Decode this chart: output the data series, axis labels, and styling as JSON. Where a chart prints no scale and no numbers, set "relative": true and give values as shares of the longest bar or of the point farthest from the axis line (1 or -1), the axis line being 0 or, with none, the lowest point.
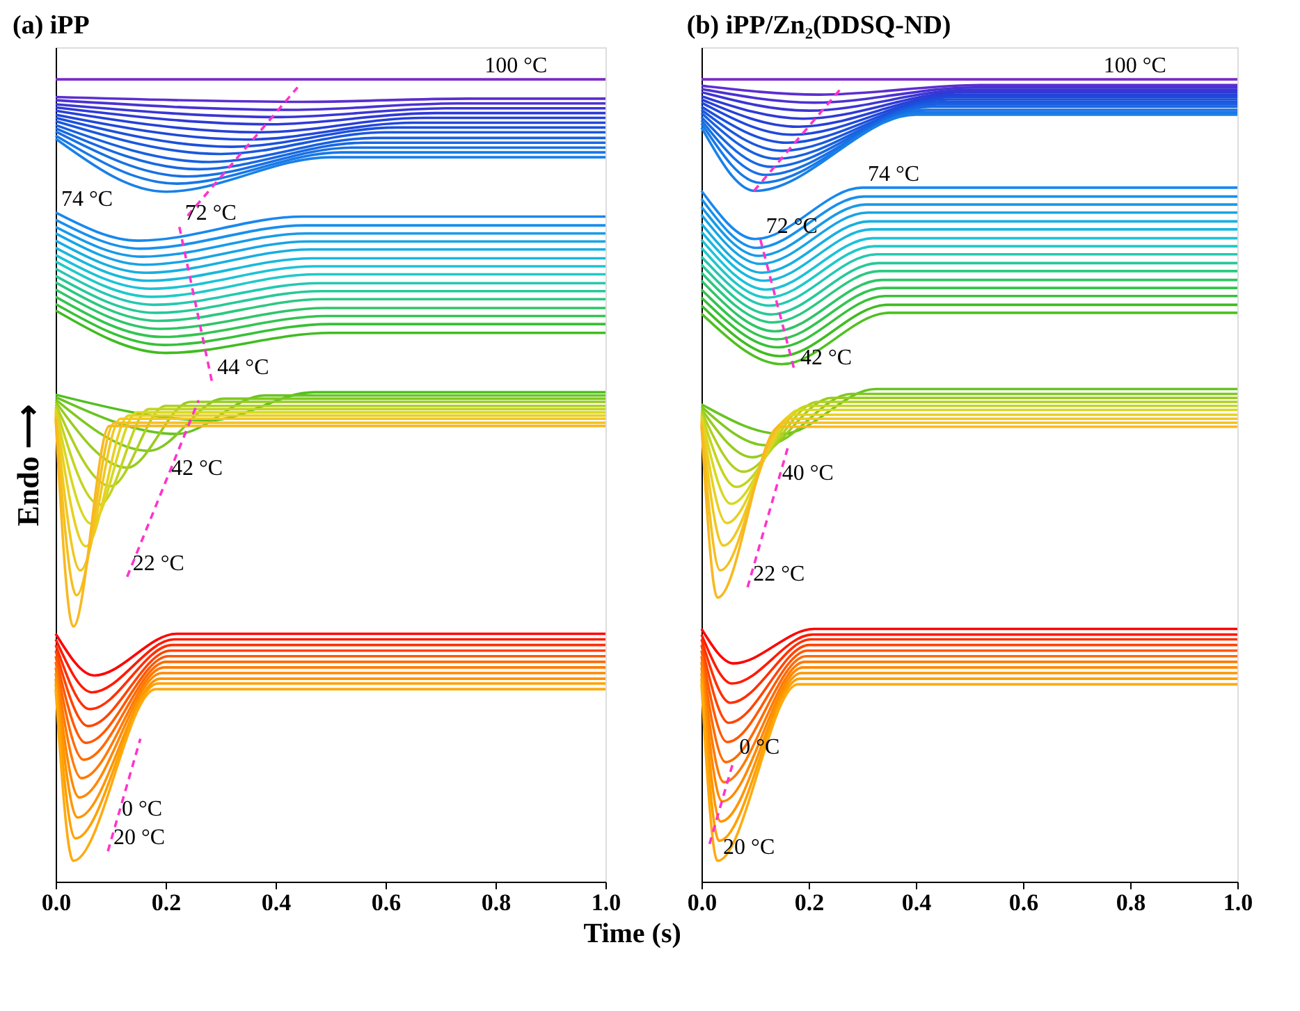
{
  "chart_data": [
    {
      "type": "line",
      "title": "(a) iPP",
      "ylabel": "Endo ⟶",
      "xlabel": "Time (s)",
      "relative": true,
      "tick_labels": "x",
      "xlim": [
        0,
        1
      ],
      "xticks": [
        {
          "value": 0,
          "label": "0.0"
        },
        {
          "value": 0.2,
          "label": "0.2"
        },
        {
          "value": 0.4,
          "label": "0.4"
        },
        {
          "value": 0.6,
          "label": "0.6"
        },
        {
          "value": 0.8,
          "label": "0.8"
        },
        {
          "value": 1,
          "label": "1.0"
        }
      ],
      "annotations": [
        {
          "text": "100 °C",
          "x": 0.77,
          "y": 1.0
        },
        {
          "text": "74 °C",
          "x": 0,
          "y": 0.834
        },
        {
          "text": "72 °C",
          "x": 0.225,
          "y": 0.816
        },
        {
          "text": "44 °C",
          "x": 0.284,
          "y": 0.624
        },
        {
          "text": "42 °C",
          "x": 0.2,
          "y": 0.498
        },
        {
          "text": "22 °C",
          "x": 0.13,
          "y": 0.38
        },
        {
          "text": "0 °C",
          "x": 0.11,
          "y": 0.074
        },
        {
          "text": "20 °C",
          "x": 0.095,
          "y": 0.038
        }
      ],
      "series": [
        {
          "color": "#7a2cc8",
          "x": [
            0,
            1
          ],
          "values": [
            1.0,
            1.0
          ]
        },
        {
          "color": "#5b2fd0",
          "x": [
            0,
            0.45,
            0.75,
            1
          ],
          "values": [
            0.978,
            0.972,
            0.976,
            0.976
          ]
        },
        {
          "color": "#4a32d2",
          "x": [
            0,
            0.43,
            0.73,
            1
          ],
          "values": [
            0.974,
            0.962,
            0.97,
            0.97
          ]
        },
        {
          "color": "#3a36d4",
          "x": [
            0,
            0.41,
            0.71,
            1
          ],
          "values": [
            0.969,
            0.953,
            0.964,
            0.964
          ]
        },
        {
          "color": "#2e3ad6",
          "x": [
            0,
            0.39,
            0.69,
            1
          ],
          "values": [
            0.965,
            0.944,
            0.958,
            0.958
          ]
        },
        {
          "color": "#2640d8",
          "x": [
            0,
            0.37,
            0.67,
            1
          ],
          "values": [
            0.961,
            0.934,
            0.952,
            0.952
          ]
        },
        {
          "color": "#2048da",
          "x": [
            0,
            0.35,
            0.65,
            1
          ],
          "values": [
            0.956,
            0.925,
            0.946,
            0.946
          ]
        },
        {
          "color": "#1c50dc",
          "x": [
            0,
            0.32,
            0.62,
            1
          ],
          "values": [
            0.952,
            0.916,
            0.94,
            0.94
          ]
        },
        {
          "color": "#1a58de",
          "x": [
            0,
            0.3,
            0.6,
            1
          ],
          "values": [
            0.948,
            0.907,
            0.934,
            0.934
          ]
        },
        {
          "color": "#1860e0",
          "x": [
            0,
            0.28,
            0.58,
            1
          ],
          "values": [
            0.943,
            0.897,
            0.927,
            0.927
          ]
        },
        {
          "color": "#1868e2",
          "x": [
            0,
            0.26,
            0.56,
            1
          ],
          "values": [
            0.939,
            0.888,
            0.921,
            0.921
          ]
        },
        {
          "color": "#1870e4",
          "x": [
            0,
            0.24,
            0.54,
            1
          ],
          "values": [
            0.935,
            0.879,
            0.915,
            0.915
          ]
        },
        {
          "color": "#1878e6",
          "x": [
            0,
            0.22,
            0.52,
            1
          ],
          "values": [
            0.93,
            0.87,
            0.909,
            0.909
          ]
        },
        {
          "color": "#1880e8",
          "x": [
            0,
            0.2,
            0.5,
            1
          ],
          "values": [
            0.926,
            0.86,
            0.903,
            0.903
          ]
        },
        {
          "color": "#1888ee",
          "x": [
            0,
            0.15,
            0.45,
            1
          ],
          "values": [
            0.834,
            0.799,
            0.829,
            0.829
          ]
        },
        {
          "color": "#1890ec",
          "x": [
            0,
            0.154,
            0.454,
            1
          ],
          "values": [
            0.825,
            0.789,
            0.818,
            0.818
          ]
        },
        {
          "color": "#189ae8",
          "x": [
            0,
            0.157,
            0.457,
            1
          ],
          "values": [
            0.816,
            0.779,
            0.808,
            0.808
          ]
        },
        {
          "color": "#18a4e4",
          "x": [
            0,
            0.161,
            0.461,
            1
          ],
          "values": [
            0.808,
            0.769,
            0.798,
            0.798
          ]
        },
        {
          "color": "#18aee0",
          "x": [
            0,
            0.164,
            0.464,
            1
          ],
          "values": [
            0.799,
            0.759,
            0.788,
            0.788
          ]
        },
        {
          "color": "#18b8dc",
          "x": [
            0,
            0.168,
            0.468,
            1
          ],
          "values": [
            0.79,
            0.749,
            0.777,
            0.777
          ]
        },
        {
          "color": "#1cc2d6",
          "x": [
            0,
            0.172,
            0.472,
            1
          ],
          "values": [
            0.781,
            0.739,
            0.767,
            0.767
          ]
        },
        {
          "color": "#20c8c8",
          "x": [
            0,
            0.175,
            0.475,
            1
          ],
          "values": [
            0.773,
            0.729,
            0.757,
            0.757
          ]
        },
        {
          "color": "#24c8b0",
          "x": [
            0,
            0.179,
            0.479,
            1
          ],
          "values": [
            0.764,
            0.719,
            0.746,
            0.746
          ]
        },
        {
          "color": "#28c898",
          "x": [
            0,
            0.182,
            0.482,
            1
          ],
          "values": [
            0.755,
            0.709,
            0.736,
            0.736
          ]
        },
        {
          "color": "#2cc880",
          "x": [
            0,
            0.186,
            0.486,
            1
          ],
          "values": [
            0.747,
            0.699,
            0.726,
            0.726
          ]
        },
        {
          "color": "#30c468",
          "x": [
            0,
            0.19,
            0.49,
            1
          ],
          "values": [
            0.738,
            0.689,
            0.715,
            0.715
          ]
        },
        {
          "color": "#34c450",
          "x": [
            0,
            0.193,
            0.493,
            1
          ],
          "values": [
            0.729,
            0.679,
            0.705,
            0.705
          ]
        },
        {
          "color": "#38c038",
          "x": [
            0,
            0.197,
            0.497,
            1
          ],
          "values": [
            0.72,
            0.669,
            0.695,
            0.695
          ]
        },
        {
          "color": "#40bc20",
          "x": [
            0,
            0.2,
            0.5,
            1
          ],
          "values": [
            0.712,
            0.659,
            0.684,
            0.684
          ]
        },
        {
          "color": "#50c020",
          "x": [
            0,
            0.28,
            0.47,
            1
          ],
          "values": [
            0.607,
            0.575,
            0.61,
            0.61
          ]
        },
        {
          "color": "#68c420",
          "x": [
            0,
            0.22,
            0.38,
            1
          ],
          "values": [
            0.604,
            0.558,
            0.606,
            0.606
          ]
        },
        {
          "color": "#80c820",
          "x": [
            0,
            0.17,
            0.305,
            1
          ],
          "values": [
            0.601,
            0.537,
            0.602,
            0.602
          ]
        },
        {
          "color": "#98cc20",
          "x": [
            0,
            0.13,
            0.245,
            1
          ],
          "values": [
            0.598,
            0.516,
            0.598,
            0.598
          ]
        },
        {
          "color": "#b0d020",
          "x": [
            0,
            0.1,
            0.2,
            1
          ],
          "values": [
            0.595,
            0.493,
            0.593,
            0.593
          ]
        },
        {
          "color": "#c4d420",
          "x": [
            0,
            0.08,
            0.17,
            1
          ],
          "values": [
            0.592,
            0.47,
            0.589,
            0.589
          ]
        },
        {
          "color": "#d8d820",
          "x": [
            0,
            0.065,
            0.148,
            1
          ],
          "values": [
            0.589,
            0.446,
            0.585,
            0.585
          ]
        },
        {
          "color": "#e8d020",
          "x": [
            0,
            0.055,
            0.133,
            1
          ],
          "values": [
            0.586,
            0.418,
            0.581,
            0.581
          ]
        },
        {
          "color": "#f0c820",
          "x": [
            0,
            0.045,
            0.118,
            1
          ],
          "values": [
            0.583,
            0.388,
            0.577,
            0.577
          ]
        },
        {
          "color": "#f4c020",
          "x": [
            0,
            0.038,
            0.107,
            1
          ],
          "values": [
            0.58,
            0.357,
            0.572,
            0.572
          ]
        },
        {
          "color": "#f8b820",
          "x": [
            0,
            0.032,
            0.098,
            1
          ],
          "values": [
            0.577,
            0.318,
            0.568,
            0.568
          ]
        },
        {
          "color": "#ff0000",
          "x": [
            0,
            0.07,
            0.22,
            1
          ],
          "values": [
            0.309,
            0.257,
            0.309,
            0.309
          ]
        },
        {
          "color": "#ff1a00",
          "x": [
            0,
            0.066,
            0.216,
            1
          ],
          "values": [
            0.302,
            0.236,
            0.302,
            0.302
          ]
        },
        {
          "color": "#ff3000",
          "x": [
            0,
            0.062,
            0.212,
            1
          ],
          "values": [
            0.295,
            0.215,
            0.295,
            0.295
          ]
        },
        {
          "color": "#ff4400",
          "x": [
            0,
            0.059,
            0.209,
            1
          ],
          "values": [
            0.288,
            0.194,
            0.288,
            0.288
          ]
        },
        {
          "color": "#ff5800",
          "x": [
            0,
            0.055,
            0.205,
            1
          ],
          "values": [
            0.281,
            0.173,
            0.281,
            0.281
          ]
        },
        {
          "color": "#ff6a00",
          "x": [
            0,
            0.051,
            0.201,
            1
          ],
          "values": [
            0.274,
            0.152,
            0.274,
            0.274
          ]
        },
        {
          "color": "#ff7a00",
          "x": [
            0,
            0.047,
            0.197,
            1
          ],
          "values": [
            0.267,
            0.129,
            0.267,
            0.267
          ]
        },
        {
          "color": "#ff8800",
          "x": [
            0,
            0.043,
            0.193,
            1
          ],
          "values": [
            0.26,
            0.105,
            0.26,
            0.26
          ]
        },
        {
          "color": "#ff9400",
          "x": [
            0,
            0.04,
            0.19,
            1
          ],
          "values": [
            0.253,
            0.08,
            0.253,
            0.253
          ]
        },
        {
          "color": "#ffa000",
          "x": [
            0,
            0.036,
            0.186,
            1
          ],
          "values": [
            0.247,
            0.054,
            0.247,
            0.247
          ]
        },
        {
          "color": "#ffaa10",
          "x": [
            0,
            0.032,
            0.182,
            1
          ],
          "values": [
            0.24,
            0.026,
            0.24,
            0.24
          ]
        },
        {
          "color": "#ff33cc",
          "line_style": "dashed",
          "x": [
            0.24,
            0.44
          ],
          "values": [
            0.83,
            0.99
          ]
        },
        {
          "color": "#ff33cc",
          "line_style": "dashed",
          "x": [
            0.225,
            0.284
          ],
          "values": [
            0.816,
            0.624
          ]
        },
        {
          "color": "#ff33cc",
          "line_style": "dashed",
          "x": [
            0.13,
            0.26
          ],
          "values": [
            0.38,
            0.6
          ]
        },
        {
          "color": "#ff33cc",
          "line_style": "dashed",
          "x": [
            0.095,
            0.154
          ],
          "values": [
            0.038,
            0.178
          ]
        }
      ]
    },
    {
      "type": "line",
      "title": "(b) iPP/Zn₂(DDSQ-ND)",
      "relative": true,
      "tick_labels": "x",
      "xlim": [
        0,
        1
      ],
      "xticks": [
        {
          "value": 0,
          "label": "0.0"
        },
        {
          "value": 0.2,
          "label": "0.2"
        },
        {
          "value": 0.4,
          "label": "0.4"
        },
        {
          "value": 0.6,
          "label": "0.6"
        },
        {
          "value": 0.8,
          "label": "0.8"
        },
        {
          "value": 1,
          "label": "1.0"
        }
      ],
      "annotations": [
        {
          "text": "100 °C",
          "x": 0.74,
          "y": 1.0
        },
        {
          "text": "74 °C",
          "x": 0.3,
          "y": 0.865
        },
        {
          "text": "72 °C",
          "x": 0.11,
          "y": 0.8
        },
        {
          "text": "42 °C",
          "x": 0.174,
          "y": 0.636
        },
        {
          "text": "40 °C",
          "x": 0.14,
          "y": 0.492
        },
        {
          "text": "22 °C",
          "x": 0.086,
          "y": 0.367
        },
        {
          "text": "0 °C",
          "x": 0.06,
          "y": 0.151
        },
        {
          "text": "20 °C",
          "x": 0.03,
          "y": 0.026
        }
      ],
      "series": [
        {
          "color": "#7a2cc8",
          "x": [
            0,
            1
          ],
          "values": [
            1.0,
            1.0
          ]
        },
        {
          "color": "#5b2fd0",
          "x": [
            0,
            0.22,
            0.52,
            1
          ],
          "values": [
            0.992,
            0.981,
            0.993,
            0.993
          ]
        },
        {
          "color": "#4a32d2",
          "x": [
            0,
            0.21,
            0.51,
            1
          ],
          "values": [
            0.988,
            0.971,
            0.99,
            0.99
          ]
        },
        {
          "color": "#3a36d4",
          "x": [
            0,
            0.2,
            0.5,
            1
          ],
          "values": [
            0.984,
            0.961,
            0.987,
            0.987
          ]
        },
        {
          "color": "#2e3ad6",
          "x": [
            0,
            0.19,
            0.49,
            1
          ],
          "values": [
            0.979,
            0.951,
            0.984,
            0.984
          ]
        },
        {
          "color": "#2640d8",
          "x": [
            0,
            0.18,
            0.48,
            1
          ],
          "values": [
            0.975,
            0.941,
            0.981,
            0.981
          ]
        },
        {
          "color": "#2048da",
          "x": [
            0,
            0.17,
            0.47,
            1
          ],
          "values": [
            0.971,
            0.931,
            0.978,
            0.978
          ]
        },
        {
          "color": "#1c50dc",
          "x": [
            0,
            0.16,
            0.46,
            1
          ],
          "values": [
            0.966,
            0.921,
            0.975,
            0.975
          ]
        },
        {
          "color": "#1a58de",
          "x": [
            0,
            0.15,
            0.45,
            1
          ],
          "values": [
            0.962,
            0.911,
            0.972,
            0.972
          ]
        },
        {
          "color": "#1860e0",
          "x": [
            0,
            0.14,
            0.44,
            1
          ],
          "values": [
            0.958,
            0.901,
            0.969,
            0.969
          ]
        },
        {
          "color": "#1868e2",
          "x": [
            0,
            0.13,
            0.43,
            1
          ],
          "values": [
            0.953,
            0.891,
            0.966,
            0.966
          ]
        },
        {
          "color": "#1870e4",
          "x": [
            0,
            0.12,
            0.42,
            1
          ],
          "values": [
            0.949,
            0.881,
            0.962,
            0.962
          ]
        },
        {
          "color": "#1878e6",
          "x": [
            0,
            0.11,
            0.41,
            1
          ],
          "values": [
            0.945,
            0.871,
            0.959,
            0.959
          ]
        },
        {
          "color": "#1880e8",
          "x": [
            0,
            0.1,
            0.4,
            1
          ],
          "values": [
            0.94,
            0.861,
            0.956,
            0.956
          ]
        },
        {
          "color": "#1888ee",
          "x": [
            0,
            0.1,
            0.3,
            1
          ],
          "values": [
            0.861,
            0.801,
            0.865,
            0.865
          ]
        },
        {
          "color": "#1890ec",
          "x": [
            0,
            0.103,
            0.303,
            1
          ],
          "values": [
            0.851,
            0.79,
            0.854,
            0.854
          ]
        },
        {
          "color": "#189ae8",
          "x": [
            0,
            0.107,
            0.307,
            1
          ],
          "values": [
            0.841,
            0.78,
            0.844,
            0.844
          ]
        },
        {
          "color": "#18a4e4",
          "x": [
            0,
            0.11,
            0.31,
            1
          ],
          "values": [
            0.831,
            0.77,
            0.834,
            0.834
          ]
        },
        {
          "color": "#18aee0",
          "x": [
            0,
            0.113,
            0.313,
            1
          ],
          "values": [
            0.82,
            0.759,
            0.823,
            0.823
          ]
        },
        {
          "color": "#18b8dc",
          "x": [
            0,
            0.117,
            0.317,
            1
          ],
          "values": [
            0.81,
            0.749,
            0.813,
            0.813
          ]
        },
        {
          "color": "#1cc2d6",
          "x": [
            0,
            0.12,
            0.32,
            1
          ],
          "values": [
            0.8,
            0.738,
            0.802,
            0.802
          ]
        },
        {
          "color": "#20c8c8",
          "x": [
            0,
            0.123,
            0.323,
            1
          ],
          "values": [
            0.79,
            0.728,
            0.792,
            0.792
          ]
        },
        {
          "color": "#24c8b0",
          "x": [
            0,
            0.127,
            0.327,
            1
          ],
          "values": [
            0.779,
            0.718,
            0.782,
            0.782
          ]
        },
        {
          "color": "#28c898",
          "x": [
            0,
            0.13,
            0.33,
            1
          ],
          "values": [
            0.769,
            0.707,
            0.771,
            0.771
          ]
        },
        {
          "color": "#2cc880",
          "x": [
            0,
            0.133,
            0.333,
            1
          ],
          "values": [
            0.759,
            0.697,
            0.761,
            0.761
          ]
        },
        {
          "color": "#30c468",
          "x": [
            0,
            0.137,
            0.337,
            1
          ],
          "values": [
            0.749,
            0.686,
            0.75,
            0.75
          ]
        },
        {
          "color": "#34c450",
          "x": [
            0,
            0.14,
            0.34,
            1
          ],
          "values": [
            0.738,
            0.676,
            0.74,
            0.74
          ]
        },
        {
          "color": "#38c038",
          "x": [
            0,
            0.143,
            0.343,
            1
          ],
          "values": [
            0.728,
            0.666,
            0.73,
            0.73
          ]
        },
        {
          "color": "#3cbe2c",
          "x": [
            0,
            0.147,
            0.347,
            1
          ],
          "values": [
            0.718,
            0.655,
            0.719,
            0.719
          ]
        },
        {
          "color": "#40bc20",
          "x": [
            0,
            0.15,
            0.35,
            1
          ],
          "values": [
            0.708,
            0.645,
            0.709,
            0.709
          ]
        },
        {
          "color": "#60c420",
          "x": [
            0,
            0.15,
            0.325,
            1
          ],
          "values": [
            0.595,
            0.558,
            0.614,
            0.614
          ]
        },
        {
          "color": "#80c820",
          "x": [
            0,
            0.12,
            0.28,
            1
          ],
          "values": [
            0.592,
            0.544,
            0.608,
            0.608
          ]
        },
        {
          "color": "#98cc20",
          "x": [
            0,
            0.095,
            0.243,
            1
          ],
          "values": [
            0.589,
            0.529,
            0.603,
            0.603
          ]
        },
        {
          "color": "#b0d020",
          "x": [
            0,
            0.078,
            0.217,
            1
          ],
          "values": [
            0.586,
            0.511,
            0.598,
            0.598
          ]
        },
        {
          "color": "#c4d420",
          "x": [
            0,
            0.065,
            0.198,
            1
          ],
          "values": [
            0.583,
            0.492,
            0.593,
            0.593
          ]
        },
        {
          "color": "#d8d820",
          "x": [
            0,
            0.055,
            0.183,
            1
          ],
          "values": [
            0.58,
            0.471,
            0.588,
            0.588
          ]
        },
        {
          "color": "#e8d020",
          "x": [
            0,
            0.047,
            0.171,
            1
          ],
          "values": [
            0.577,
            0.447,
            0.582,
            0.582
          ]
        },
        {
          "color": "#f0c820",
          "x": [
            0,
            0.041,
            0.162,
            1
          ],
          "values": [
            0.574,
            0.419,
            0.577,
            0.577
          ]
        },
        {
          "color": "#f4c020",
          "x": [
            0,
            0.035,
            0.153,
            1
          ],
          "values": [
            0.571,
            0.388,
            0.572,
            0.572
          ]
        },
        {
          "color": "#f8b820",
          "x": [
            0,
            0.03,
            0.145,
            1
          ],
          "values": [
            0.568,
            0.354,
            0.567,
            0.567
          ]
        },
        {
          "color": "#ff0000",
          "x": [
            0,
            0.06,
            0.21,
            1
          ],
          "values": [
            0.315,
            0.272,
            0.315,
            0.315
          ]
        },
        {
          "color": "#ff1a00",
          "x": [
            0,
            0.057,
            0.207,
            1
          ],
          "values": [
            0.308,
            0.247,
            0.308,
            0.308
          ]
        },
        {
          "color": "#ff3000",
          "x": [
            0,
            0.054,
            0.204,
            1
          ],
          "values": [
            0.302,
            0.223,
            0.302,
            0.302
          ]
        },
        {
          "color": "#ff4400",
          "x": [
            0,
            0.051,
            0.201,
            1
          ],
          "values": [
            0.295,
            0.198,
            0.295,
            0.295
          ]
        },
        {
          "color": "#ff5800",
          "x": [
            0,
            0.048,
            0.198,
            1
          ],
          "values": [
            0.288,
            0.174,
            0.288,
            0.288
          ]
        },
        {
          "color": "#ff6a00",
          "x": [
            0,
            0.045,
            0.195,
            1
          ],
          "values": [
            0.281,
            0.149,
            0.281,
            0.281
          ]
        },
        {
          "color": "#ff7a00",
          "x": [
            0,
            0.042,
            0.192,
            1
          ],
          "values": [
            0.274,
            0.124,
            0.274,
            0.274
          ]
        },
        {
          "color": "#ff8800",
          "x": [
            0,
            0.039,
            0.189,
            1
          ],
          "values": [
            0.267,
            0.1,
            0.267,
            0.267
          ]
        },
        {
          "color": "#ff9400",
          "x": [
            0,
            0.036,
            0.186,
            1
          ],
          "values": [
            0.26,
            0.075,
            0.26,
            0.26
          ]
        },
        {
          "color": "#ffa000",
          "x": [
            0,
            0.033,
            0.183,
            1
          ],
          "values": [
            0.253,
            0.051,
            0.253,
            0.253
          ]
        },
        {
          "color": "#ffaa10",
          "x": [
            0,
            0.03,
            0.18,
            1
          ],
          "values": [
            0.246,
            0.026,
            0.246,
            0.246
          ]
        },
        {
          "color": "#ff33cc",
          "line_style": "dashed",
          "x": [
            0.098,
            0.262
          ],
          "values": [
            0.861,
            0.99
          ]
        },
        {
          "color": "#ff33cc",
          "line_style": "dashed",
          "x": [
            0.11,
            0.174
          ],
          "values": [
            0.8,
            0.636
          ]
        },
        {
          "color": "#ff33cc",
          "line_style": "dashed",
          "x": [
            0.086,
            0.161
          ],
          "values": [
            0.367,
            0.541
          ]
        },
        {
          "color": "#ff33cc",
          "line_style": "dashed",
          "x": [
            0.015,
            0.06
          ],
          "values": [
            0.047,
            0.151
          ]
        }
      ]
    }
  ]
}
